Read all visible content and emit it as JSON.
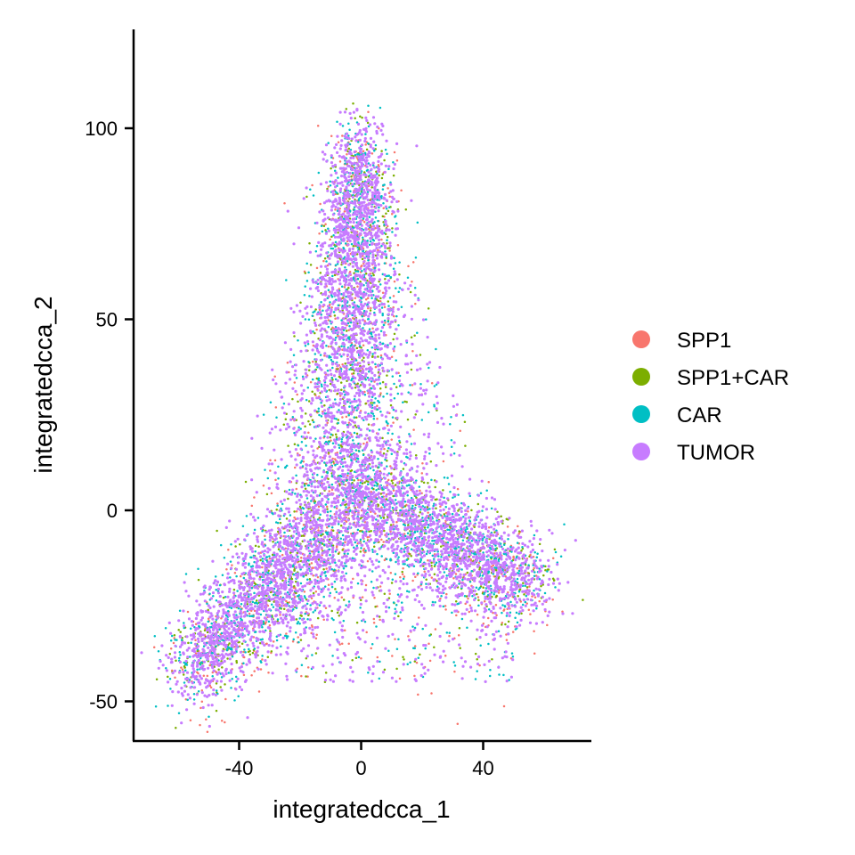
{
  "chart_data": {
    "type": "scatter",
    "title": "",
    "xlabel": "integratedcca_1",
    "ylabel": "integratedcca_2",
    "xlim": [
      -75,
      75
    ],
    "ylim": [
      -60,
      125
    ],
    "x_ticks": [
      -40,
      0,
      40
    ],
    "y_ticks": [
      -50,
      0,
      50,
      100
    ],
    "x_tick_labels": [
      "-40",
      "0",
      "40"
    ],
    "y_tick_labels": [
      "-50",
      "0",
      "50",
      "100"
    ],
    "grid": false,
    "legend_position": "right",
    "series": [
      {
        "name": "SPP1",
        "color": "#F8766D",
        "values": []
      },
      {
        "name": "SPP1+CAR",
        "color": "#7CAE00",
        "values": []
      },
      {
        "name": "CAR",
        "color": "#00BFC4",
        "values": []
      },
      {
        "name": "TUMOR",
        "color": "#C77CFF",
        "values": []
      }
    ],
    "distribution_note_points": {
      "apex": [
        0,
        95
      ],
      "left_vertex": [
        -57,
        -42
      ],
      "right_vertex": [
        55,
        -20
      ],
      "center": [
        0,
        5
      ]
    }
  }
}
